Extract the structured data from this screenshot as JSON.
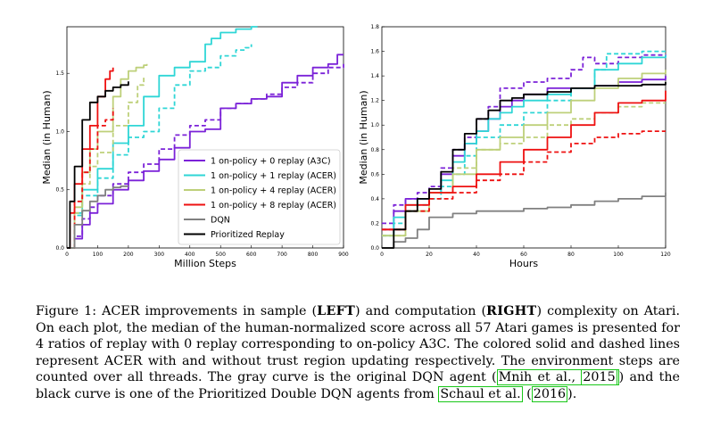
{
  "chart_data": [
    {
      "type": "line",
      "panel": "left",
      "xlabel": "Million Steps",
      "ylabel": "Median (in Human)",
      "xlim": [
        0,
        900
      ],
      "ylim": [
        0,
        1.9
      ],
      "xticks": [
        "0",
        "100",
        "200",
        "300",
        "400",
        "500",
        "600",
        "700",
        "800",
        "900"
      ],
      "yticks": [
        "0.0",
        "0.5",
        "1.0",
        "1.5"
      ],
      "legend_position": "center-right",
      "legend": [
        {
          "label": "1 on-policy + 0 replay (A3C)",
          "color": "#7b22d8"
        },
        {
          "label": "1 on-policy + 1 replay (ACER)",
          "color": "#2fd6d6"
        },
        {
          "label": "1 on-policy + 4 replay (ACER)",
          "color": "#bed07a"
        },
        {
          "label": "1 on-policy + 8 replay (ACER)",
          "color": "#ee1111"
        },
        {
          "label": "DQN",
          "color": "#808080"
        },
        {
          "label": "Prioritized Replay",
          "color": "#000000"
        }
      ],
      "series": [
        {
          "name": "A3C",
          "color": "#7b22d8",
          "style": "solid",
          "x": [
            0,
            25,
            50,
            75,
            100,
            150,
            200,
            250,
            300,
            350,
            400,
            450,
            500,
            550,
            600,
            650,
            700,
            750,
            800,
            850,
            880,
            900
          ],
          "y": [
            0.0,
            0.08,
            0.2,
            0.3,
            0.38,
            0.5,
            0.58,
            0.66,
            0.76,
            0.86,
            1.0,
            1.02,
            1.2,
            1.24,
            1.28,
            1.3,
            1.42,
            1.48,
            1.55,
            1.58,
            1.66,
            1.66
          ]
        },
        {
          "name": "A3C (trust region)",
          "color": "#7b22d8",
          "style": "dashed",
          "x": [
            0,
            25,
            50,
            75,
            100,
            150,
            200,
            250,
            300,
            350,
            400,
            450,
            500,
            550,
            600,
            650,
            700,
            750,
            800,
            850,
            900
          ],
          "y": [
            0.0,
            0.1,
            0.25,
            0.35,
            0.45,
            0.55,
            0.65,
            0.72,
            0.85,
            0.97,
            1.05,
            1.1,
            1.2,
            1.24,
            1.28,
            1.32,
            1.38,
            1.42,
            1.5,
            1.55,
            1.58
          ]
        },
        {
          "name": "ACER 1 replay",
          "color": "#2fd6d6",
          "style": "solid",
          "x": [
            0,
            25,
            50,
            100,
            150,
            200,
            250,
            300,
            350,
            400,
            450,
            470,
            500,
            550,
            600,
            620
          ],
          "y": [
            0.0,
            0.3,
            0.5,
            0.68,
            0.9,
            1.05,
            1.3,
            1.48,
            1.55,
            1.6,
            1.75,
            1.8,
            1.85,
            1.88,
            1.9,
            1.9
          ]
        },
        {
          "name": "ACER 1 replay (trust region)",
          "color": "#2fd6d6",
          "style": "dashed",
          "x": [
            0,
            25,
            50,
            100,
            150,
            200,
            250,
            300,
            350,
            400,
            450,
            500,
            550,
            580,
            600
          ],
          "y": [
            0.0,
            0.28,
            0.45,
            0.6,
            0.8,
            0.95,
            1.0,
            1.2,
            1.4,
            1.52,
            1.55,
            1.65,
            1.7,
            1.72,
            1.75
          ]
        },
        {
          "name": "ACER 4 replay",
          "color": "#bed07a",
          "style": "solid",
          "x": [
            0,
            25,
            50,
            75,
            100,
            150,
            175,
            200,
            225,
            250,
            260
          ],
          "y": [
            0.0,
            0.35,
            0.65,
            0.85,
            1.0,
            1.3,
            1.45,
            1.52,
            1.55,
            1.57,
            1.58
          ]
        },
        {
          "name": "ACER 4 replay (trust region)",
          "color": "#bed07a",
          "style": "dashed",
          "x": [
            0,
            25,
            50,
            75,
            100,
            150,
            200,
            230,
            250
          ],
          "y": [
            0.0,
            0.3,
            0.55,
            0.7,
            0.82,
            1.05,
            1.25,
            1.4,
            1.48
          ]
        },
        {
          "name": "ACER 8 replay",
          "color": "#ee1111",
          "style": "solid",
          "x": [
            0,
            10,
            25,
            50,
            75,
            100,
            125,
            140,
            150
          ],
          "y": [
            0.0,
            0.3,
            0.55,
            0.85,
            1.05,
            1.3,
            1.45,
            1.52,
            1.55
          ]
        },
        {
          "name": "ACER 8 replay (trust region)",
          "color": "#ee1111",
          "style": "dashed",
          "x": [
            0,
            25,
            50,
            75,
            100,
            125,
            150
          ],
          "y": [
            0.0,
            0.4,
            0.65,
            0.85,
            1.05,
            1.1,
            1.2
          ]
        },
        {
          "name": "DQN",
          "color": "#808080",
          "style": "solid",
          "x": [
            0,
            25,
            50,
            75,
            100,
            125,
            150,
            175,
            200
          ],
          "y": [
            0.0,
            0.2,
            0.32,
            0.4,
            0.45,
            0.5,
            0.52,
            0.53,
            0.53
          ]
        },
        {
          "name": "Prioritized Replay",
          "color": "#000000",
          "style": "solid",
          "x": [
            0,
            10,
            25,
            50,
            75,
            100,
            125,
            150,
            175,
            200
          ],
          "y": [
            0.0,
            0.4,
            0.7,
            1.1,
            1.25,
            1.3,
            1.35,
            1.38,
            1.4,
            1.43
          ]
        }
      ]
    },
    {
      "type": "line",
      "panel": "right",
      "xlabel": "Hours",
      "ylabel": "Median (in Human)",
      "xlim": [
        0,
        120
      ],
      "ylim": [
        0,
        1.8
      ],
      "xticks": [
        "0",
        "20",
        "40",
        "60",
        "80",
        "100",
        "120"
      ],
      "yticks": [
        "0.0",
        "0.2",
        "0.4",
        "0.6",
        "0.8",
        "1.0",
        "1.2",
        "1.4",
        "1.6",
        "1.8"
      ],
      "series": [
        {
          "name": "A3C",
          "color": "#7b22d8",
          "style": "solid",
          "x": [
            0,
            5,
            10,
            15,
            20,
            25,
            30,
            35,
            40,
            45,
            50,
            55,
            60,
            70,
            80,
            90,
            100,
            110,
            120
          ],
          "y": [
            0.15,
            0.3,
            0.4,
            0.4,
            0.45,
            0.6,
            0.75,
            0.85,
            0.95,
            1.05,
            1.15,
            1.2,
            1.25,
            1.3,
            1.3,
            1.32,
            1.35,
            1.37,
            1.4
          ]
        },
        {
          "name": "A3C (trust region)",
          "color": "#7b22d8",
          "style": "dashed",
          "x": [
            0,
            5,
            10,
            15,
            20,
            25,
            30,
            35,
            40,
            45,
            50,
            60,
            70,
            80,
            85,
            90,
            100,
            110,
            120
          ],
          "y": [
            0.2,
            0.35,
            0.4,
            0.45,
            0.5,
            0.65,
            0.8,
            0.9,
            1.05,
            1.15,
            1.3,
            1.35,
            1.38,
            1.45,
            1.55,
            1.5,
            1.55,
            1.57,
            1.55
          ]
        },
        {
          "name": "ACER 1 replay",
          "color": "#2fd6d6",
          "style": "solid",
          "x": [
            0,
            5,
            10,
            15,
            20,
            25,
            30,
            35,
            40,
            45,
            50,
            55,
            60,
            70,
            80,
            90,
            100,
            110,
            120
          ],
          "y": [
            0.1,
            0.25,
            0.35,
            0.4,
            0.45,
            0.55,
            0.7,
            0.85,
            0.95,
            1.05,
            1.1,
            1.15,
            1.2,
            1.25,
            1.3,
            1.45,
            1.5,
            1.55,
            1.57
          ]
        },
        {
          "name": "ACER 1 replay (trust region)",
          "color": "#2fd6d6",
          "style": "dashed",
          "x": [
            0,
            5,
            10,
            15,
            20,
            25,
            30,
            35,
            40,
            50,
            60,
            70,
            80,
            90,
            95,
            100,
            110,
            120
          ],
          "y": [
            0.1,
            0.2,
            0.3,
            0.35,
            0.4,
            0.5,
            0.6,
            0.75,
            0.9,
            1.0,
            1.1,
            1.2,
            1.3,
            1.45,
            1.58,
            1.58,
            1.6,
            1.6
          ]
        },
        {
          "name": "ACER 4 replay",
          "color": "#bed07a",
          "style": "solid",
          "x": [
            0,
            10,
            20,
            30,
            40,
            50,
            60,
            70,
            80,
            90,
            100,
            110,
            120
          ],
          "y": [
            0.1,
            0.3,
            0.45,
            0.6,
            0.8,
            0.9,
            1.0,
            1.1,
            1.2,
            1.3,
            1.38,
            1.42,
            1.45
          ]
        },
        {
          "name": "ACER 4 replay (trust region)",
          "color": "#bed07a",
          "style": "dashed",
          "x": [
            0,
            10,
            20,
            30,
            40,
            50,
            60,
            70,
            80,
            90,
            100,
            110,
            120
          ],
          "y": [
            0.1,
            0.3,
            0.45,
            0.65,
            0.8,
            0.85,
            0.9,
            1.0,
            1.05,
            1.1,
            1.15,
            1.18,
            1.18
          ]
        },
        {
          "name": "ACER 8 replay",
          "color": "#ee1111",
          "style": "solid",
          "x": [
            0,
            10,
            20,
            30,
            40,
            50,
            60,
            70,
            80,
            90,
            100,
            110,
            120
          ],
          "y": [
            0.15,
            0.35,
            0.45,
            0.5,
            0.6,
            0.7,
            0.8,
            0.9,
            1.0,
            1.1,
            1.18,
            1.2,
            1.28
          ]
        },
        {
          "name": "ACER 8 replay (trust region)",
          "color": "#ee1111",
          "style": "dashed",
          "x": [
            0,
            10,
            20,
            30,
            40,
            50,
            60,
            70,
            80,
            90,
            100,
            110,
            120
          ],
          "y": [
            0.15,
            0.3,
            0.4,
            0.45,
            0.55,
            0.6,
            0.7,
            0.78,
            0.85,
            0.9,
            0.93,
            0.95,
            0.95
          ]
        },
        {
          "name": "DQN",
          "color": "#808080",
          "style": "solid",
          "x": [
            0,
            5,
            10,
            15,
            20,
            30,
            40,
            50,
            60,
            70,
            80,
            90,
            100,
            110,
            120
          ],
          "y": [
            0.0,
            0.05,
            0.08,
            0.15,
            0.25,
            0.28,
            0.3,
            0.3,
            0.32,
            0.33,
            0.35,
            0.38,
            0.4,
            0.42,
            0.45
          ]
        },
        {
          "name": "Prioritized Replay",
          "color": "#000000",
          "style": "solid",
          "x": [
            0,
            5,
            10,
            15,
            20,
            25,
            30,
            35,
            40,
            45,
            50,
            55,
            60,
            65,
            70,
            80,
            90,
            100,
            110,
            120
          ],
          "y": [
            0.0,
            0.15,
            0.3,
            0.4,
            0.48,
            0.62,
            0.8,
            0.93,
            1.05,
            1.12,
            1.2,
            1.22,
            1.25,
            1.25,
            1.27,
            1.3,
            1.32,
            1.32,
            1.33,
            1.35
          ]
        }
      ]
    }
  ],
  "caption": {
    "seg1": "Figure 1: ACER improvements in sample (",
    "left": "LEFT",
    "seg2": ") and computation (",
    "right": "RIGHT",
    "seg3": ") complexity on Atari. On each plot, the median of the human-normalized score across all 57 Atari games is presented for 4 ratios of replay with 0 replay corresponding to on-policy A3C. The colored solid and dashed lines represent ACER with and without trust region updating respectively. The environment steps are counted over all threads. The gray curve is the original DQN agent (",
    "cite1_authors": "Mnih et al.",
    "cite1_sep": ", ",
    "cite1_year": "2015",
    "seg4": ") and the black curve is one of the Prioritized Double DQN agents from ",
    "cite2_authors": "Schaul et al.",
    "cite2_open": " (",
    "cite2_year": "2016",
    "seg5": ")."
  }
}
